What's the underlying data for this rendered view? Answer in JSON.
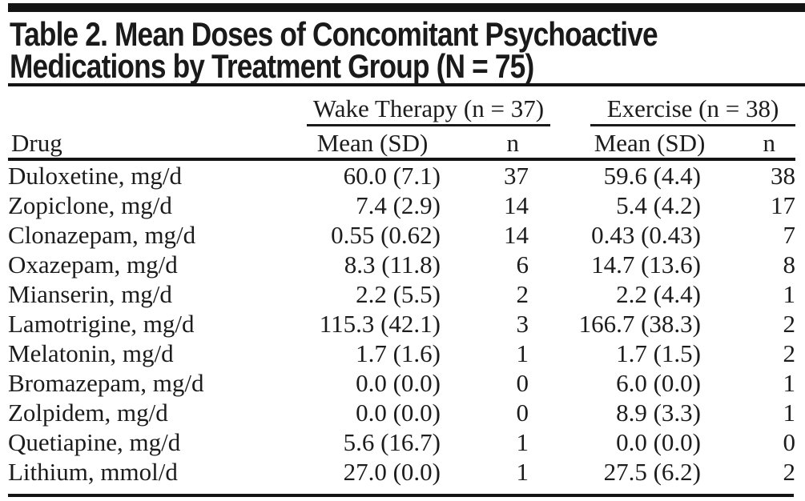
{
  "page": {
    "background": "#ffffff",
    "text_color": "#1c1c1c",
    "rule_color": "#141414"
  },
  "title": {
    "line1": "Table 2. Mean Doses of Concomitant Psychoactive",
    "line2": "Medications by Treatment Group (N = 75)"
  },
  "table": {
    "groups": {
      "wake": "Wake Therapy (n = 37)",
      "exercise": "Exercise (n = 38)"
    },
    "columns": {
      "drug": "Drug",
      "wt_mean": "Mean (SD)",
      "wt_n": "n",
      "ex_mean": "Mean (SD)",
      "ex_n": "n"
    },
    "rows": [
      [
        "Duloxetine, mg/d",
        "60.0 (7.1)",
        "37",
        "59.6 (4.4)",
        "38"
      ],
      [
        "Zopiclone, mg/d",
        "7.4 (2.9)",
        "14",
        "5.4 (4.2)",
        "17"
      ],
      [
        "Clonazepam, mg/d",
        "0.55 (0.62)",
        "14",
        "0.43 (0.43)",
        "7"
      ],
      [
        "Oxazepam, mg/d",
        "8.3 (11.8)",
        "6",
        "14.7 (13.6)",
        "8"
      ],
      [
        "Mianserin, mg/d",
        "2.2 (5.5)",
        "2",
        "2.2 (4.4)",
        "1"
      ],
      [
        "Lamotrigine, mg/d",
        "115.3 (42.1)",
        "3",
        "166.7 (38.3)",
        "2"
      ],
      [
        "Melatonin, mg/d",
        "1.7 (1.6)",
        "1",
        "1.7 (1.5)",
        "2"
      ],
      [
        "Bromazepam, mg/d",
        "0.0 (0.0)",
        "0",
        "6.0 (0.0)",
        "1"
      ],
      [
        "Zolpidem, mg/d",
        "0.0 (0.0)",
        "0",
        "8.9 (3.3)",
        "1"
      ],
      [
        "Quetiapine, mg/d",
        "5.6 (16.7)",
        "1",
        "0.0 (0.0)",
        "0"
      ],
      [
        "Lithium, mmol/d",
        "27.0 (0.0)",
        "1",
        "27.5 (6.2)",
        "2"
      ]
    ]
  }
}
